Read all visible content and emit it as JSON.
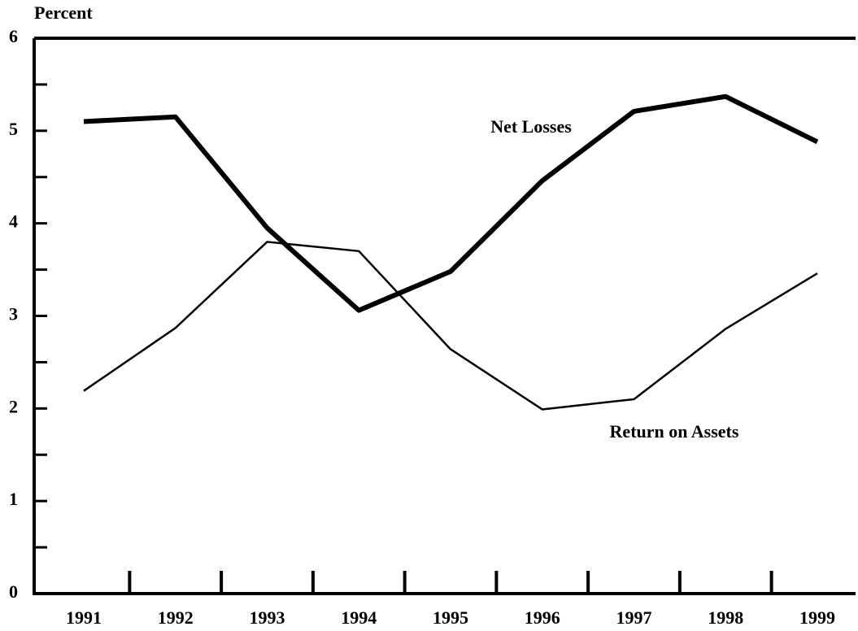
{
  "chart_data": {
    "type": "line",
    "y_label": "Percent",
    "categories": [
      "1991",
      "1992",
      "1993",
      "1994",
      "1995",
      "1996",
      "1997",
      "1998",
      "1999"
    ],
    "series": [
      {
        "name": "Net Losses",
        "color": "#000000",
        "values": [
          5.1,
          5.15,
          3.95,
          3.06,
          3.48,
          4.46,
          5.21,
          5.37,
          4.88
        ]
      },
      {
        "name": "Return on Assets",
        "color": "#000000",
        "values": [
          2.19,
          2.87,
          3.8,
          3.7,
          2.64,
          1.99,
          2.1,
          2.86,
          3.46
        ]
      }
    ],
    "ylim": [
      0,
      6
    ],
    "yticks": [
      0,
      1,
      2,
      3,
      4,
      5,
      6
    ],
    "yticks_minor": [
      0.5,
      1.5,
      2.5,
      3.5,
      4.5,
      5.5
    ],
    "grid": false
  }
}
